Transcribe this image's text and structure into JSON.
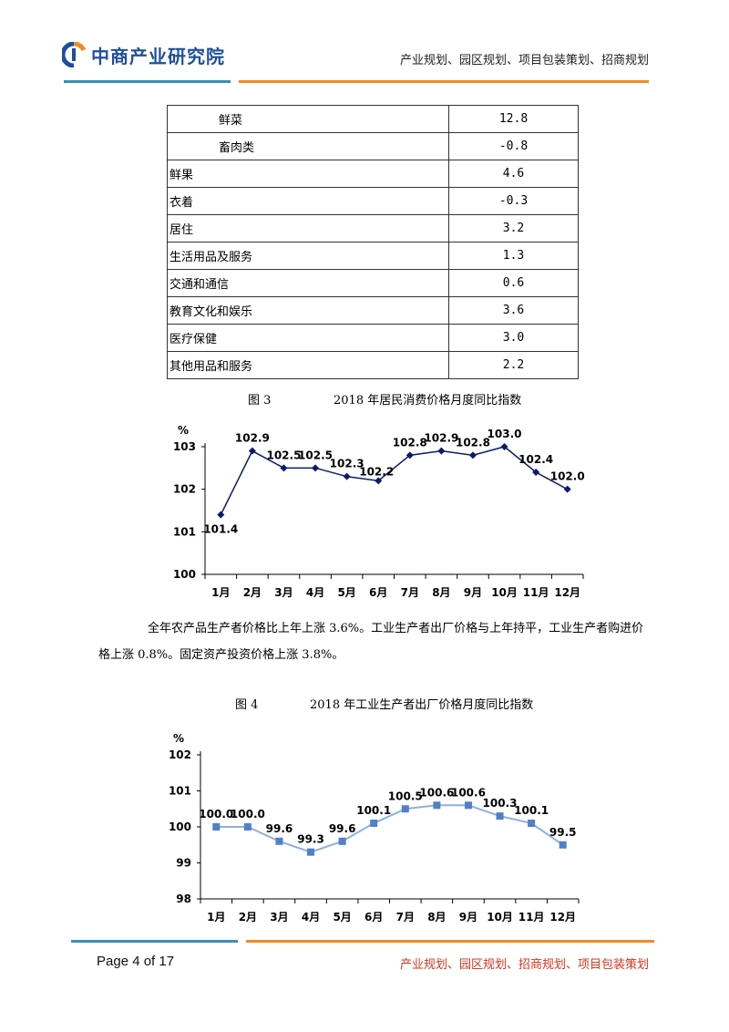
{
  "header": {
    "logo_text": "中商产业研究院",
    "tagline": "产业规划、园区规划、项目包装策划、招商规划"
  },
  "table": {
    "rows": [
      {
        "category": "鲜菜",
        "value": "12.8",
        "indent": true
      },
      {
        "category": "畜肉类",
        "value": "-0.8",
        "indent": true
      },
      {
        "category": "鲜果",
        "value": "4.6",
        "indent": false
      },
      {
        "category": "衣着",
        "value": "-0.3",
        "indent": false
      },
      {
        "category": "居住",
        "value": "3.2",
        "indent": false
      },
      {
        "category": "生活用品及服务",
        "value": "1.3",
        "indent": false
      },
      {
        "category": "交通和通信",
        "value": "0.6",
        "indent": false
      },
      {
        "category": "教育文化和娱乐",
        "value": "3.6",
        "indent": false
      },
      {
        "category": "医疗保健",
        "value": "3.0",
        "indent": false
      },
      {
        "category": "其他用品和服务",
        "value": "2.2",
        "indent": false
      }
    ]
  },
  "figure3": {
    "number": "图 3",
    "title": "2018 年居民消费价格月度同比指数"
  },
  "paragraph": "全年农产品生产者价格比上年上涨 3.6%。工业生产者出厂价格与上年持平，工业生产者购进价格上涨 0.8%。固定资产投资价格上涨 3.8%。",
  "figure4": {
    "number": "图 4",
    "title": "2018 年工业生产者出厂价格月度同比指数"
  },
  "chart_data": [
    {
      "type": "line",
      "ylabel": "%",
      "ylim": [
        100,
        103
      ],
      "yticks": [
        "100",
        "101",
        "102",
        "103"
      ],
      "categories": [
        "1月",
        "2月",
        "3月",
        "4月",
        "5月",
        "6月",
        "7月",
        "8月",
        "9月",
        "10月",
        "11月",
        "12月"
      ],
      "values": [
        101.4,
        102.9,
        102.5,
        102.5,
        102.3,
        102.2,
        102.8,
        102.9,
        102.8,
        103.0,
        102.4,
        102.0
      ],
      "labels": [
        "101.4",
        "102.9",
        "102.5",
        "102.5",
        "102.3",
        "102.2",
        "102.8",
        "102.9",
        "102.8",
        "103.0",
        "102.4",
        "102.0"
      ],
      "line_color": "#0d1a6b",
      "marker": "diamond",
      "grid": false
    },
    {
      "type": "line",
      "ylabel": "%",
      "ylim": [
        98,
        102
      ],
      "yticks": [
        "98",
        "99",
        "100",
        "101",
        "102"
      ],
      "categories": [
        "1月",
        "2月",
        "3月",
        "4月",
        "5月",
        "6月",
        "7月",
        "8月",
        "9月",
        "10月",
        "11月",
        "12月"
      ],
      "values": [
        100.0,
        100.0,
        99.6,
        99.3,
        99.6,
        100.1,
        100.5,
        100.6,
        100.6,
        100.3,
        100.1,
        99.5
      ],
      "labels": [
        "100.0",
        "100.0",
        "99.6",
        "99.3",
        "99.6",
        "100.1",
        "100.5",
        "100.6",
        "100.6",
        "100.3",
        "100.1",
        "99.5"
      ],
      "line_color": "#8fb0dd",
      "marker_color": "#4f81c7",
      "marker": "square",
      "grid": false
    }
  ],
  "footer": {
    "page": "Page 4 of 17",
    "tagline": "产业规划、园区规划、招商规划、项目包装策划"
  }
}
